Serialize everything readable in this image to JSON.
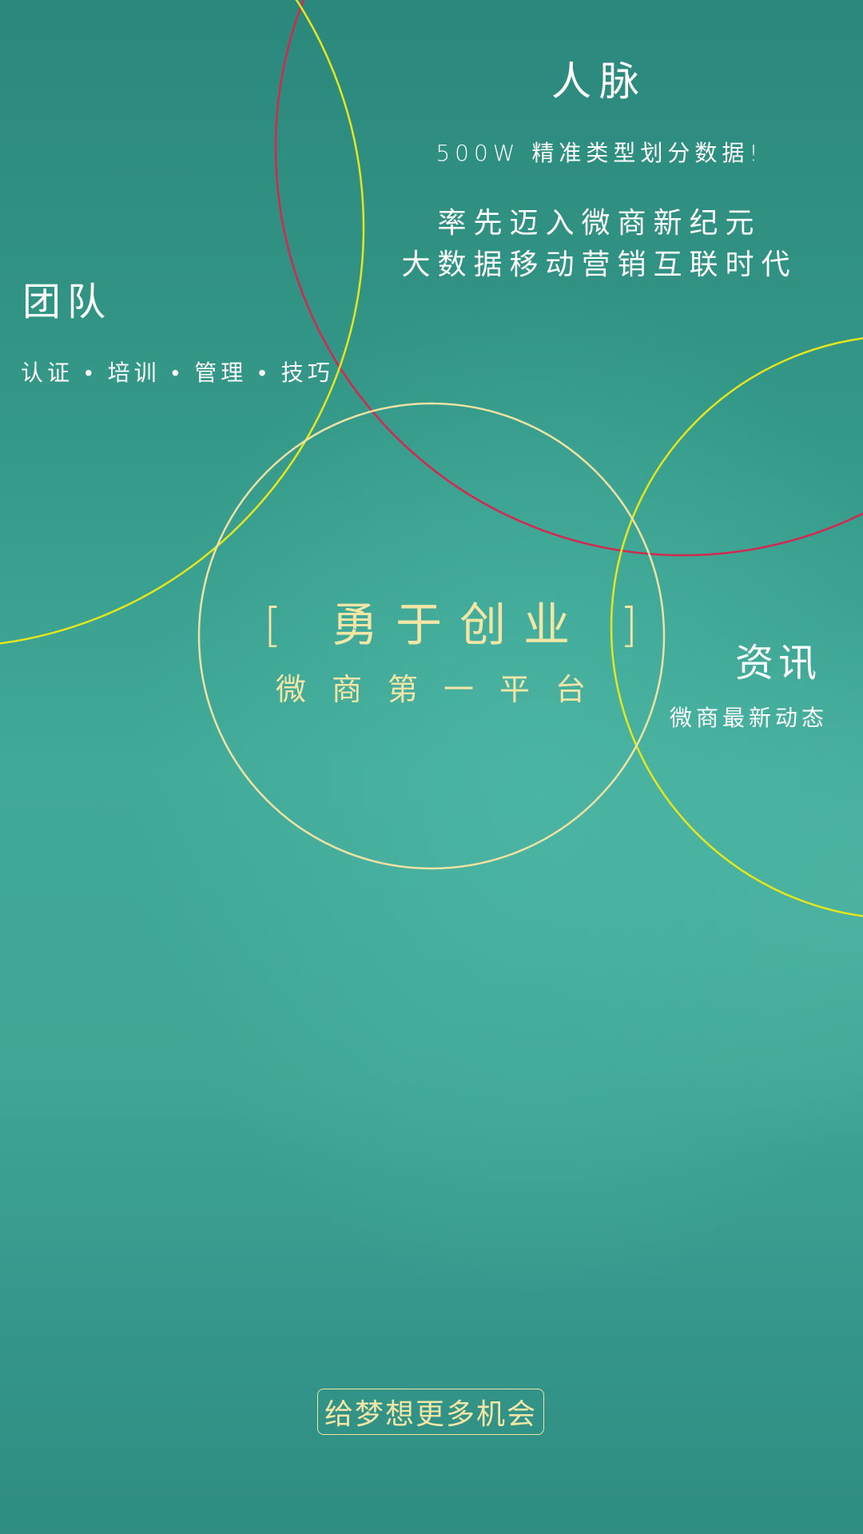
{
  "colors": {
    "accent_red": "#d3294f",
    "accent_yellow": "#e6e61e",
    "accent_cream": "#f2e6a6",
    "text_white": "#ffffff",
    "background": "#3a9e8e"
  },
  "connections": {
    "title": "人脉",
    "data_line": "500W 精准类型划分数据!",
    "line1": "率先迈入微商新纪元",
    "line2": "大数据移动营销互联时代"
  },
  "team": {
    "title": "团队",
    "subtitle": "认证 • 培训 • 管理 • 技巧"
  },
  "center": {
    "title": "[ 勇于创业 ]",
    "subtitle": "微商第一平台"
  },
  "news": {
    "title": "资讯",
    "subtitle": "微商最新动态"
  },
  "cta": {
    "label": "给梦想更多机会"
  }
}
